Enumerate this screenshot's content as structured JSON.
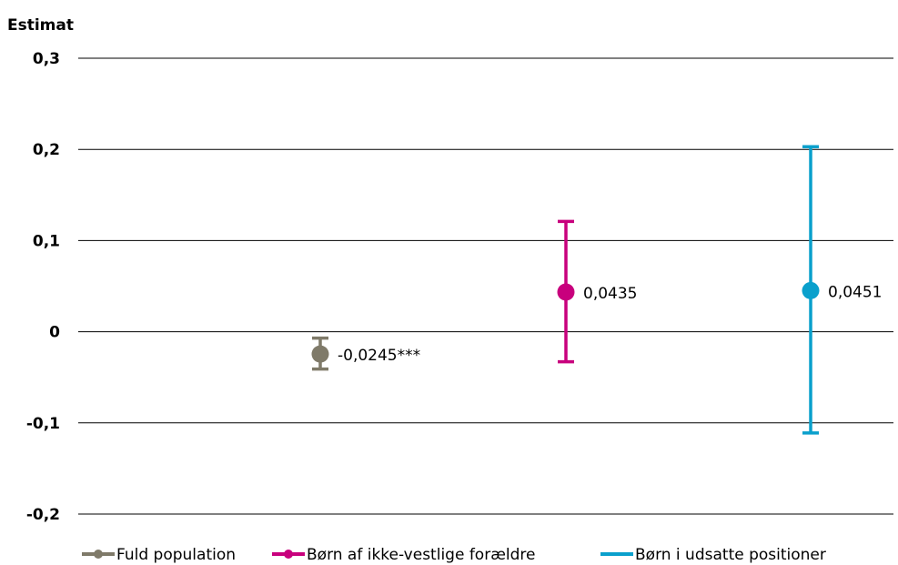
{
  "chart_data": {
    "type": "scatter",
    "ylabel": "Estimat",
    "ylim": [
      -0.2,
      0.3
    ],
    "yticks": [
      {
        "value": 0.3,
        "label": "0,3"
      },
      {
        "value": 0.2,
        "label": "0,2"
      },
      {
        "value": 0.1,
        "label": "0,1"
      },
      {
        "value": 0,
        "label": "0"
      },
      {
        "value": -0.1,
        "label": "-0,1"
      },
      {
        "value": -0.2,
        "label": "-0,2"
      }
    ],
    "grid": true,
    "legend_position": "bottom",
    "series": [
      {
        "name": "Fuld population",
        "color": "#7f7a69",
        "value": -0.0245,
        "ci_low": -0.041,
        "ci_high": -0.007,
        "label": "-0,0245***",
        "marker": "circle"
      },
      {
        "name": "Børn af ikke-vestlige forældre",
        "color": "#c8007d",
        "value": 0.0435,
        "ci_low": -0.033,
        "ci_high": 0.121,
        "label": "0,0435",
        "marker": "circle"
      },
      {
        "name": "Børn i udsatte positioner",
        "color": "#0aa0cc",
        "value": 0.0451,
        "ci_low": -0.111,
        "ci_high": 0.203,
        "label": "0,0451",
        "marker": "line"
      }
    ]
  }
}
